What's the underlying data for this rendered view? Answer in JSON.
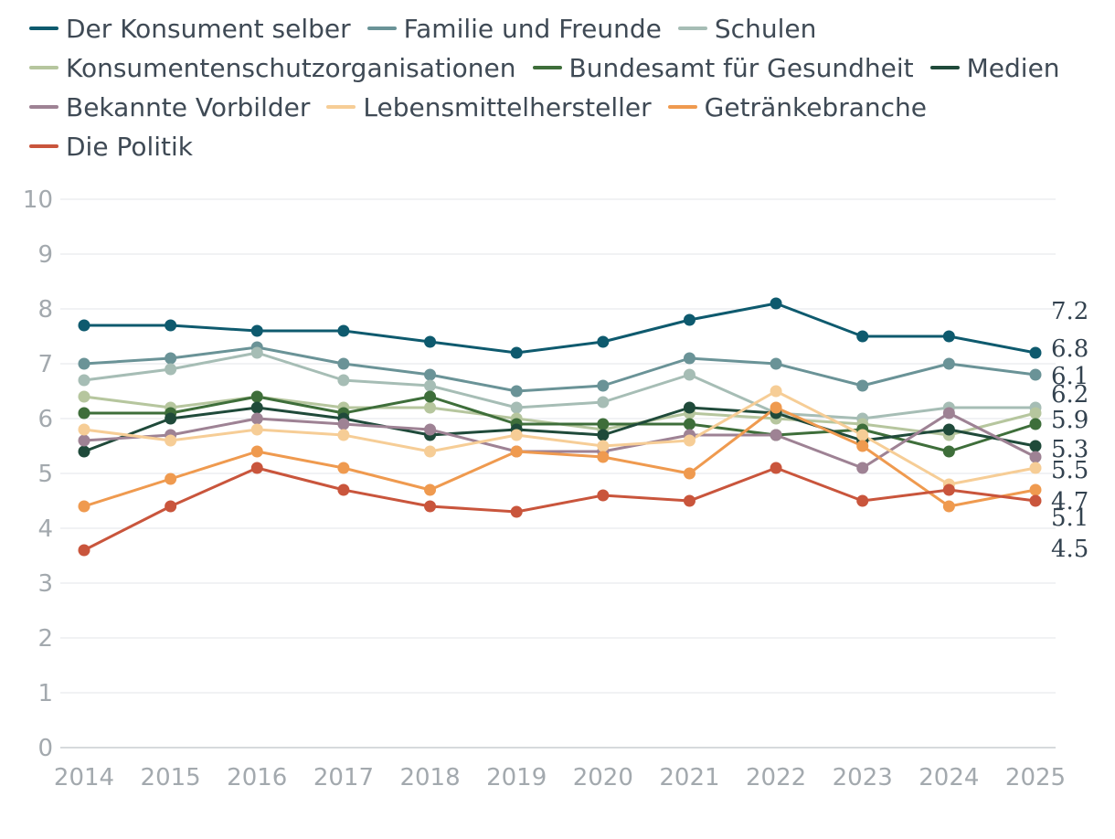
{
  "chart_data": {
    "type": "line",
    "title": "",
    "xlabel": "",
    "ylabel": "",
    "ylim": [
      0,
      10
    ],
    "yticks": [
      0,
      1,
      2,
      3,
      4,
      5,
      6,
      7,
      8,
      9,
      10
    ],
    "ytick_labels": [
      "0",
      "1",
      "2",
      "3",
      "4",
      "5",
      "6",
      "7",
      "8",
      "9",
      "10"
    ],
    "x": [
      "2014",
      "2015",
      "2016",
      "2017",
      "2018",
      "2019",
      "2020",
      "2021",
      "2022",
      "2023",
      "2024",
      "2025"
    ],
    "grid": true,
    "legend_position": "top",
    "series": [
      {
        "name": "Der Konsument selber",
        "color": "#0e5a6e",
        "values": [
          7.7,
          7.7,
          7.6,
          7.6,
          7.4,
          7.2,
          7.4,
          7.8,
          8.1,
          7.5,
          7.5,
          7.2
        ]
      },
      {
        "name": "Familie und Freunde",
        "color": "#6a9397",
        "values": [
          7.0,
          7.1,
          7.3,
          7.0,
          6.8,
          6.5,
          6.6,
          7.1,
          7.0,
          6.6,
          7.0,
          6.8
        ]
      },
      {
        "name": "Schulen",
        "color": "#a6bdb5",
        "values": [
          6.7,
          6.9,
          7.2,
          6.7,
          6.6,
          6.2,
          6.3,
          6.8,
          6.1,
          6.0,
          6.2,
          6.2
        ]
      },
      {
        "name": "Konsumentenschutzorganisationen",
        "color": "#b6c69e",
        "values": [
          6.4,
          6.2,
          6.4,
          6.2,
          6.2,
          6.0,
          5.8,
          6.1,
          6.0,
          5.9,
          5.7,
          6.1
        ]
      },
      {
        "name": "Bundesamt für Gesundheit",
        "color": "#3e6e3a",
        "values": [
          6.1,
          6.1,
          6.4,
          6.1,
          6.4,
          5.9,
          5.9,
          5.9,
          5.7,
          5.8,
          5.4,
          5.9
        ]
      },
      {
        "name": "Medien",
        "color": "#1f4a3a",
        "values": [
          5.4,
          6.0,
          6.2,
          6.0,
          5.7,
          5.8,
          5.7,
          6.2,
          6.1,
          5.6,
          5.8,
          5.5
        ]
      },
      {
        "name": "Bekannte Vorbilder",
        "color": "#9e8294",
        "values": [
          5.6,
          5.7,
          6.0,
          5.9,
          5.8,
          5.4,
          5.4,
          5.7,
          5.7,
          5.1,
          6.1,
          5.3
        ]
      },
      {
        "name": "Lebensmittelhersteller",
        "color": "#f6cd96",
        "values": [
          5.8,
          5.6,
          5.8,
          5.7,
          5.4,
          5.7,
          5.5,
          5.6,
          6.5,
          5.7,
          4.8,
          5.1
        ]
      },
      {
        "name": "Getränkebranche",
        "color": "#ef9a4f",
        "values": [
          4.4,
          4.9,
          5.4,
          5.1,
          4.7,
          5.4,
          5.3,
          5.0,
          6.2,
          5.5,
          4.4,
          4.7
        ]
      },
      {
        "name": "Die Politik",
        "color": "#c9553c",
        "values": [
          3.6,
          4.4,
          5.1,
          4.7,
          4.4,
          4.3,
          4.6,
          4.5,
          5.1,
          4.5,
          4.7,
          4.5
        ]
      }
    ],
    "end_labels": [
      "7.2",
      "6.8",
      "6.1",
      "6.2",
      "5.9",
      "5.3",
      "5.5",
      "4.7",
      "5.1",
      "4.5"
    ]
  }
}
